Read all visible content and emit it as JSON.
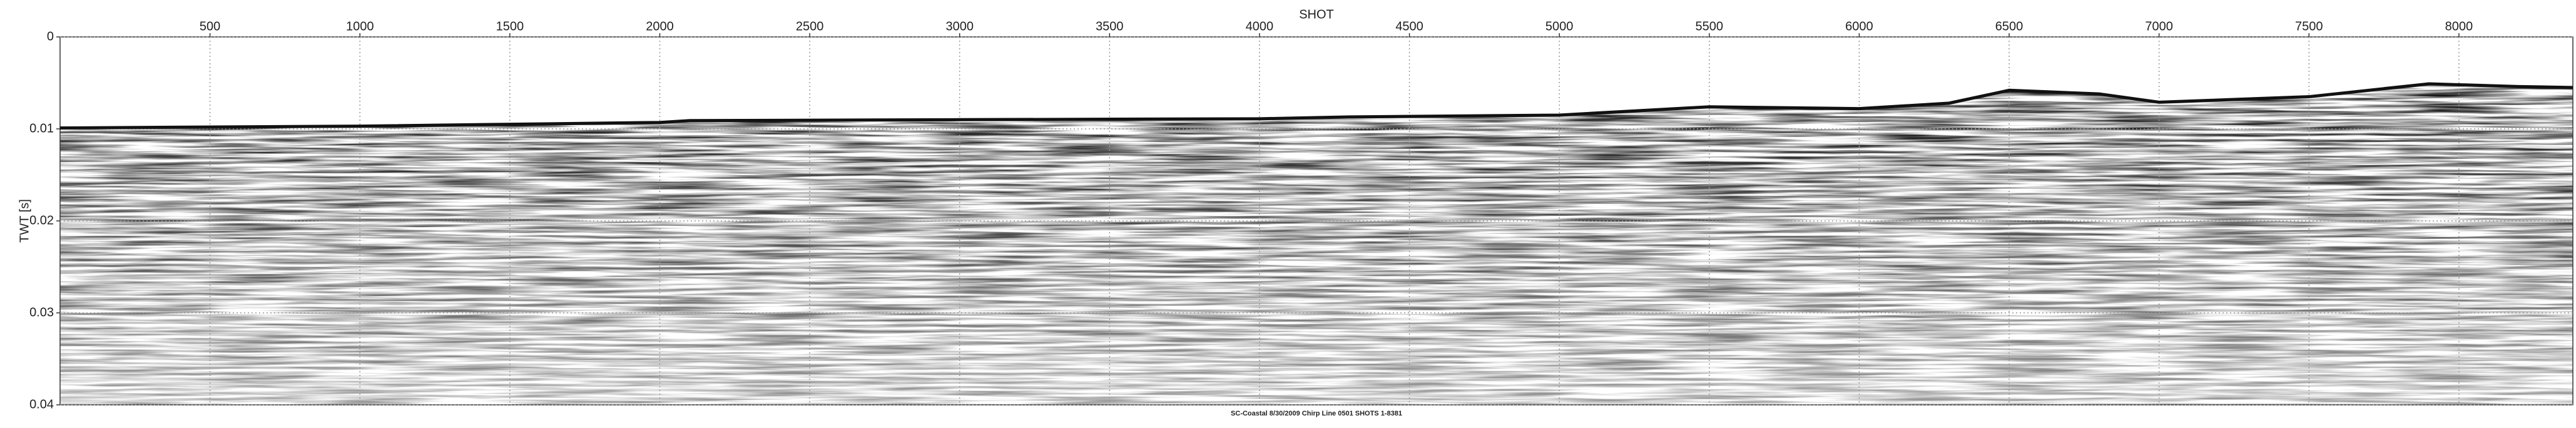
{
  "chart_data": {
    "type": "seismic-section",
    "x_label": "SHOT",
    "y_label": "TWT [s]",
    "caption": "SC-Coastal 8/30/2009 Chirp Line 0501 SHOTS 1-8381",
    "xlim": [
      0,
      8380
    ],
    "xticks": [
      500,
      1000,
      1500,
      2000,
      2500,
      3000,
      3500,
      4000,
      4500,
      5000,
      5500,
      6000,
      6500,
      7000,
      7500,
      8000
    ],
    "ylim": [
      0,
      0.04
    ],
    "yticks": [
      0,
      0.01,
      0.02,
      0.03,
      0.04
    ],
    "grid": true,
    "color": "#111111",
    "x": [
      0,
      1000,
      2000,
      2100,
      3000,
      4000,
      4300,
      5000,
      5500,
      6000,
      6300,
      6500,
      6800,
      7000,
      7500,
      7900,
      8200,
      8380
    ],
    "values": [
      0.0099,
      0.0097,
      0.0093,
      0.0091,
      0.009,
      0.0089,
      0.0087,
      0.0085,
      0.0076,
      0.0078,
      0.0072,
      0.0058,
      0.0062,
      0.0071,
      0.0065,
      0.0051,
      0.0054,
      0.0055
    ]
  }
}
